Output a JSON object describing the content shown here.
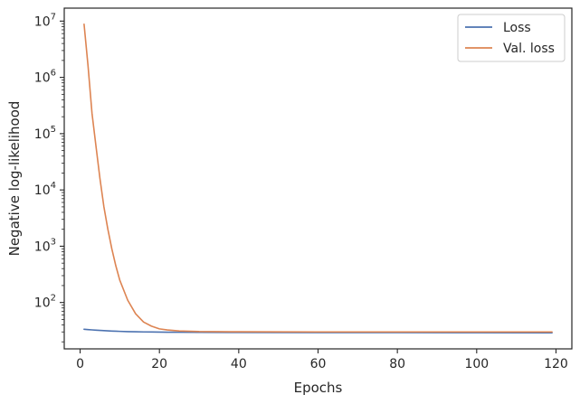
{
  "chart_data": {
    "type": "line",
    "xlabel": "Epochs",
    "ylabel": "Negative log-likelihood",
    "yscale": "log",
    "xlim": [
      -4,
      124
    ],
    "ylim": [
      15,
      17000000
    ],
    "xticks": [
      0,
      20,
      40,
      60,
      80,
      100,
      120
    ],
    "yticks": [
      100,
      1000,
      10000,
      100000,
      1000000,
      10000000
    ],
    "ytick_exponents": [
      "2",
      "3",
      "4",
      "5",
      "6",
      "7"
    ],
    "ytick_base": "10",
    "grid": false,
    "legend_position": "top-right",
    "x": [
      1,
      2,
      3,
      4,
      5,
      6,
      7,
      8,
      9,
      10,
      12,
      14,
      16,
      18,
      20,
      22,
      25,
      30,
      40,
      60,
      80,
      100,
      119
    ],
    "series": [
      {
        "name": "Loss",
        "color": "#4c72b0",
        "values": [
          33.5,
          33.0,
          32.6,
          32.2,
          31.9,
          31.6,
          31.3,
          31.1,
          30.9,
          30.7,
          30.4,
          30.2,
          30.0,
          29.9,
          29.8,
          29.7,
          29.6,
          29.5,
          29.4,
          29.3,
          29.2,
          29.1,
          29.0
        ]
      },
      {
        "name": "Val. loss",
        "color": "#dd8452",
        "values": [
          8800000,
          1600000,
          230000,
          60000,
          16000,
          5000,
          2000,
          900,
          450,
          250,
          110,
          63,
          45,
          38,
          34,
          32.5,
          31.2,
          30.5,
          30.2,
          30.0,
          30.0,
          30.0,
          30.0
        ]
      }
    ]
  }
}
